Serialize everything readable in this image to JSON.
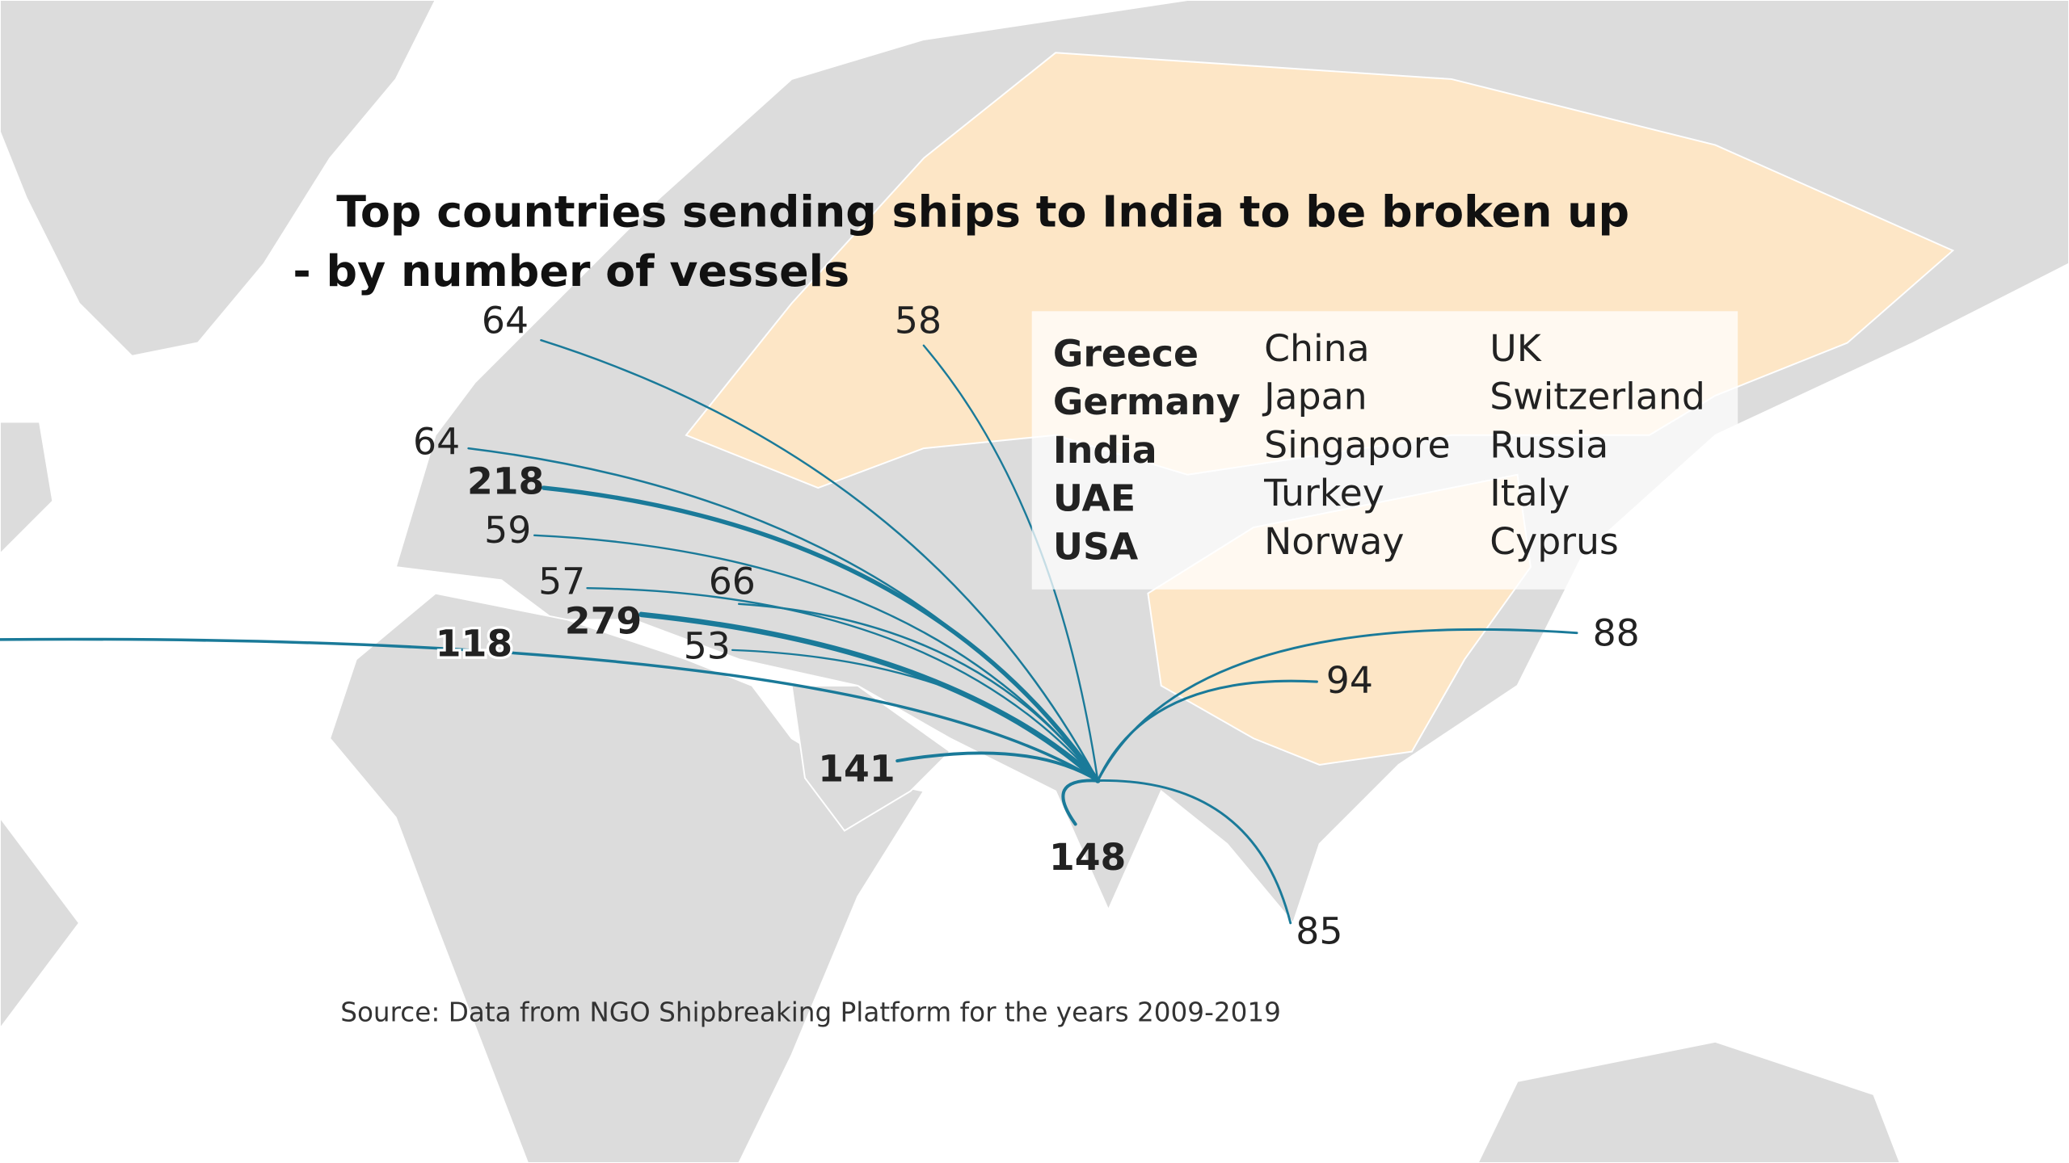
{
  "title_lines": [
    "Top countries sending ships to India to be broken up",
    "- by number of vessels"
  ],
  "legend": {
    "columns": [
      [
        "Greece",
        "Germany",
        "India",
        "UAE",
        "USA"
      ],
      [
        "China",
        "Japan",
        "Singapore",
        "Turkey",
        "Norway"
      ],
      [
        "UK",
        "Switzerland",
        "Russia",
        "Italy",
        "Cyprus"
      ]
    ]
  },
  "flows": [
    64,
    58,
    64,
    218,
    59,
    57,
    66,
    279,
    53,
    118,
    141,
    148,
    94,
    88,
    85
  ],
  "source": "Source: Data from NGO Shipbreaking Platform for the years 2009-2019"
}
